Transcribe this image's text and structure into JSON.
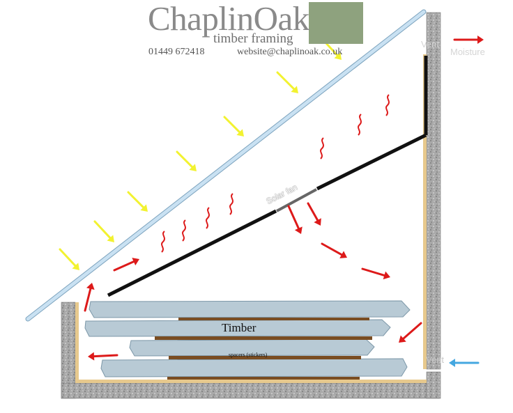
{
  "brand": {
    "name": "ChaplinOak",
    "tagline": "timber framing",
    "phone": "01449 672418",
    "email": "website@chaplinoak.co.uk"
  },
  "labels": {
    "vent_top": "Vent",
    "moisture": "Moisture",
    "solar_fan": "Solar fan",
    "timber": "Timber",
    "spacers": "spacers (stickers)",
    "vent_bottom": "Vent"
  },
  "colors": {
    "sun_arrow": "#f2f230",
    "hot_air_arrow": "#dd1a1a",
    "cold_air_arrow": "#44a7e0",
    "wall": "#a8a8a8",
    "wall_lining": "#e7c98d",
    "glazing": "#c9e1f2",
    "baffle": "#111111",
    "timber_board": "#b8cad5",
    "spacer": "#7a4d22",
    "logo_leaf_bg": "#8ea27e"
  },
  "icons": {
    "logo": "oak-leaf-icon",
    "sun": "sun-ray-arrow-icon",
    "heat": "heat-wave-icon",
    "airflow": "airflow-arrow-icon"
  }
}
